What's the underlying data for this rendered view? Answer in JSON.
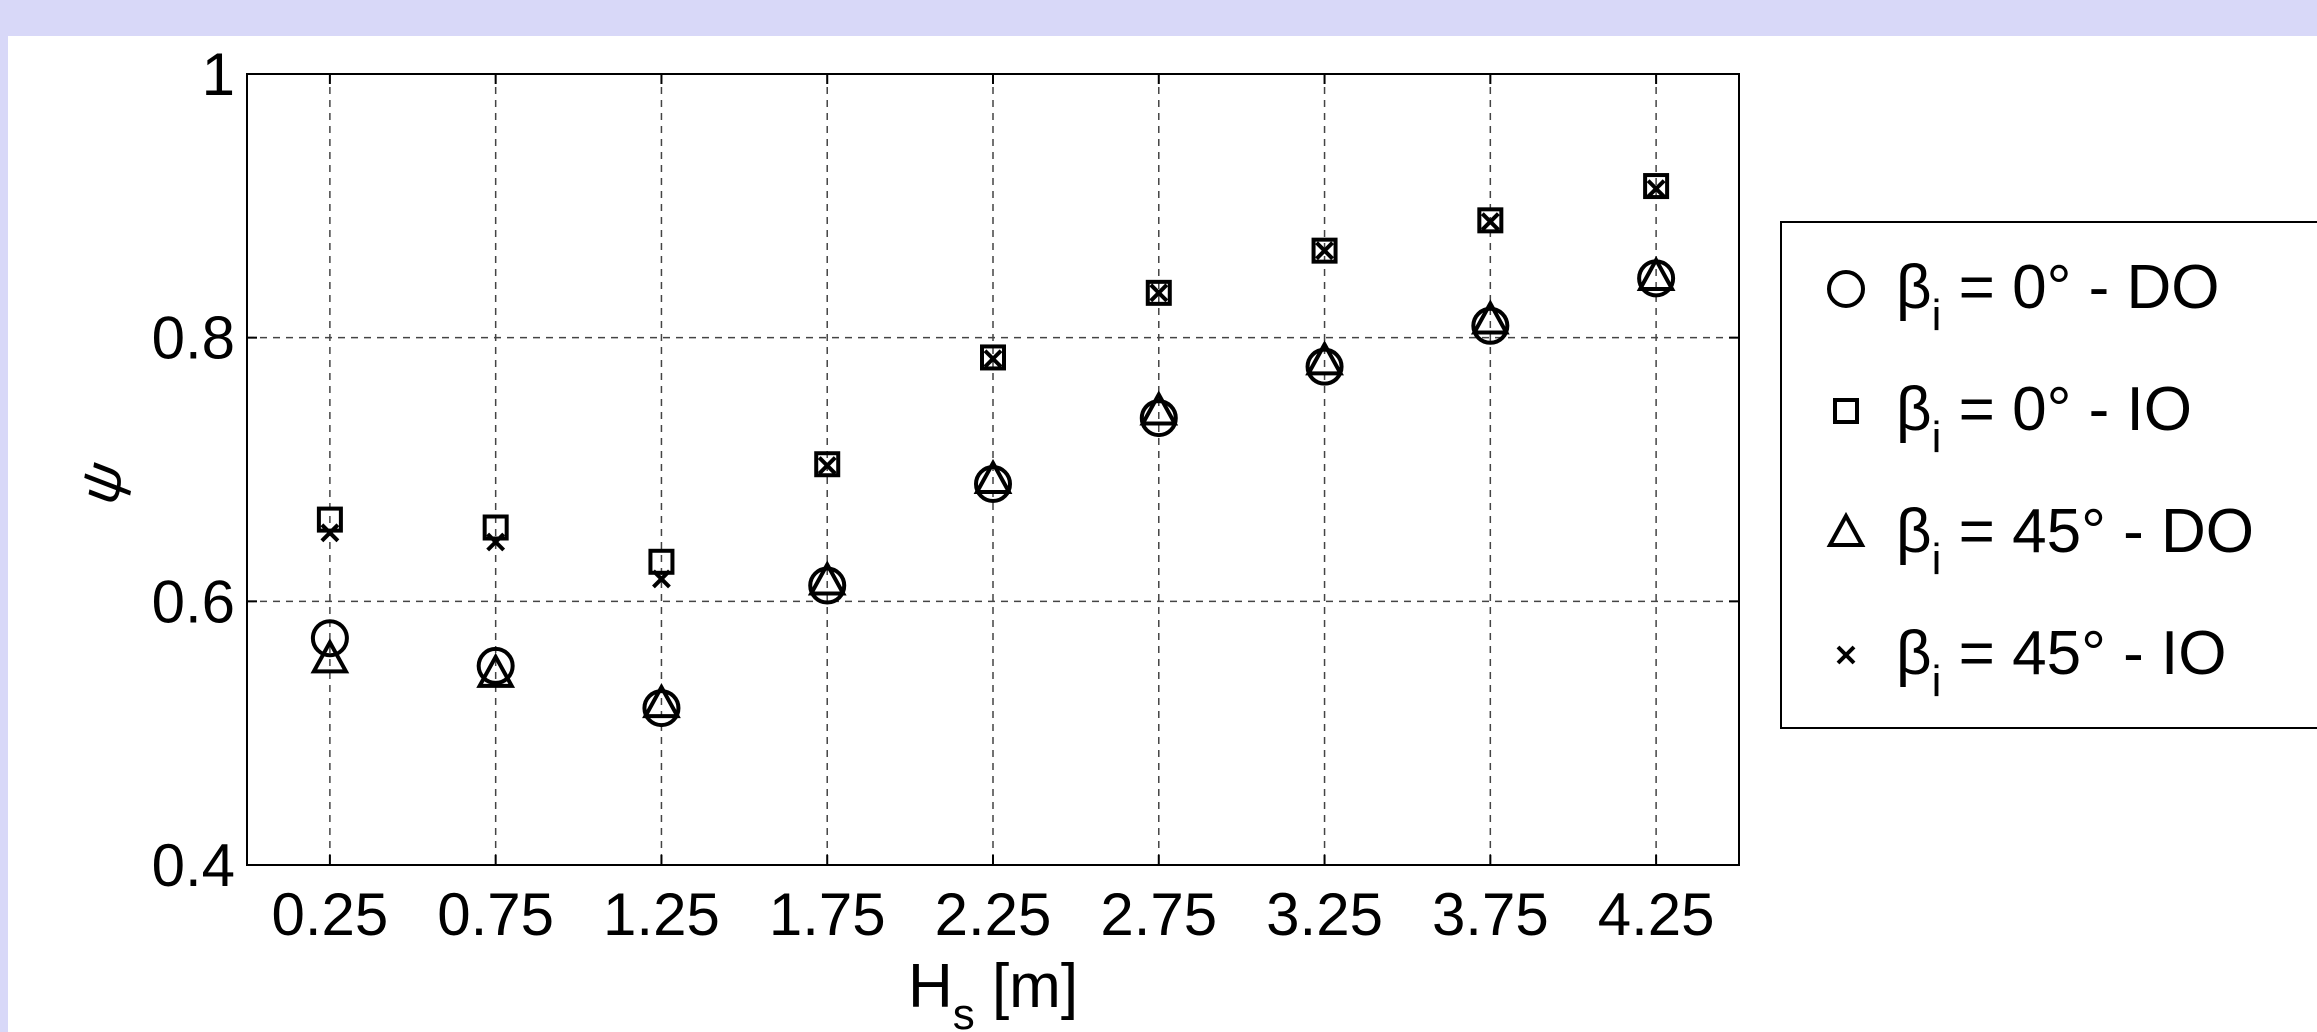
{
  "chart_data": {
    "type": "scatter",
    "title": "",
    "xlabel_main": "H",
    "xlabel_sub": "s",
    "xlabel_unit": " [m]",
    "ylabel": "ψ",
    "x": [
      0.25,
      0.75,
      1.25,
      1.75,
      2.25,
      2.75,
      3.25,
      3.75,
      4.25
    ],
    "x_tick_labels": [
      "0.25",
      "0.75",
      "1.25",
      "1.75",
      "2.25",
      "2.75",
      "3.25",
      "3.75",
      "4.25"
    ],
    "y_ticks": [
      0.4,
      0.6,
      0.8,
      1
    ],
    "y_tick_labels": [
      "0.4",
      "0.6",
      "0.8",
      "1"
    ],
    "xlim": [
      0,
      4.5
    ],
    "ylim": [
      0.4,
      1.0
    ],
    "grid": true,
    "legend_position": "outside-right",
    "series": [
      {
        "marker": "circle",
        "legend_main": "β",
        "legend_sub": "i",
        "legend_rest": " = 0° - DO",
        "values": [
          0.572,
          0.551,
          0.519,
          0.612,
          0.689,
          0.739,
          0.778,
          0.809,
          0.845
        ]
      },
      {
        "marker": "square",
        "legend_main": "β",
        "legend_sub": "i",
        "legend_rest": " = 0° - IO",
        "values": [
          0.662,
          0.656,
          0.63,
          0.704,
          0.785,
          0.834,
          0.866,
          0.889,
          0.915
        ]
      },
      {
        "marker": "triangle",
        "legend_main": "β",
        "legend_sub": "i",
        "legend_rest": " = 45° - DO",
        "values": [
          0.556,
          0.545,
          0.522,
          0.615,
          0.692,
          0.744,
          0.782,
          0.813,
          0.846
        ]
      },
      {
        "marker": "x",
        "legend_main": "β",
        "legend_sub": "i",
        "legend_rest": " = 45° - IO",
        "values": [
          0.652,
          0.645,
          0.617,
          0.703,
          0.784,
          0.834,
          0.866,
          0.888,
          0.913
        ]
      }
    ]
  }
}
